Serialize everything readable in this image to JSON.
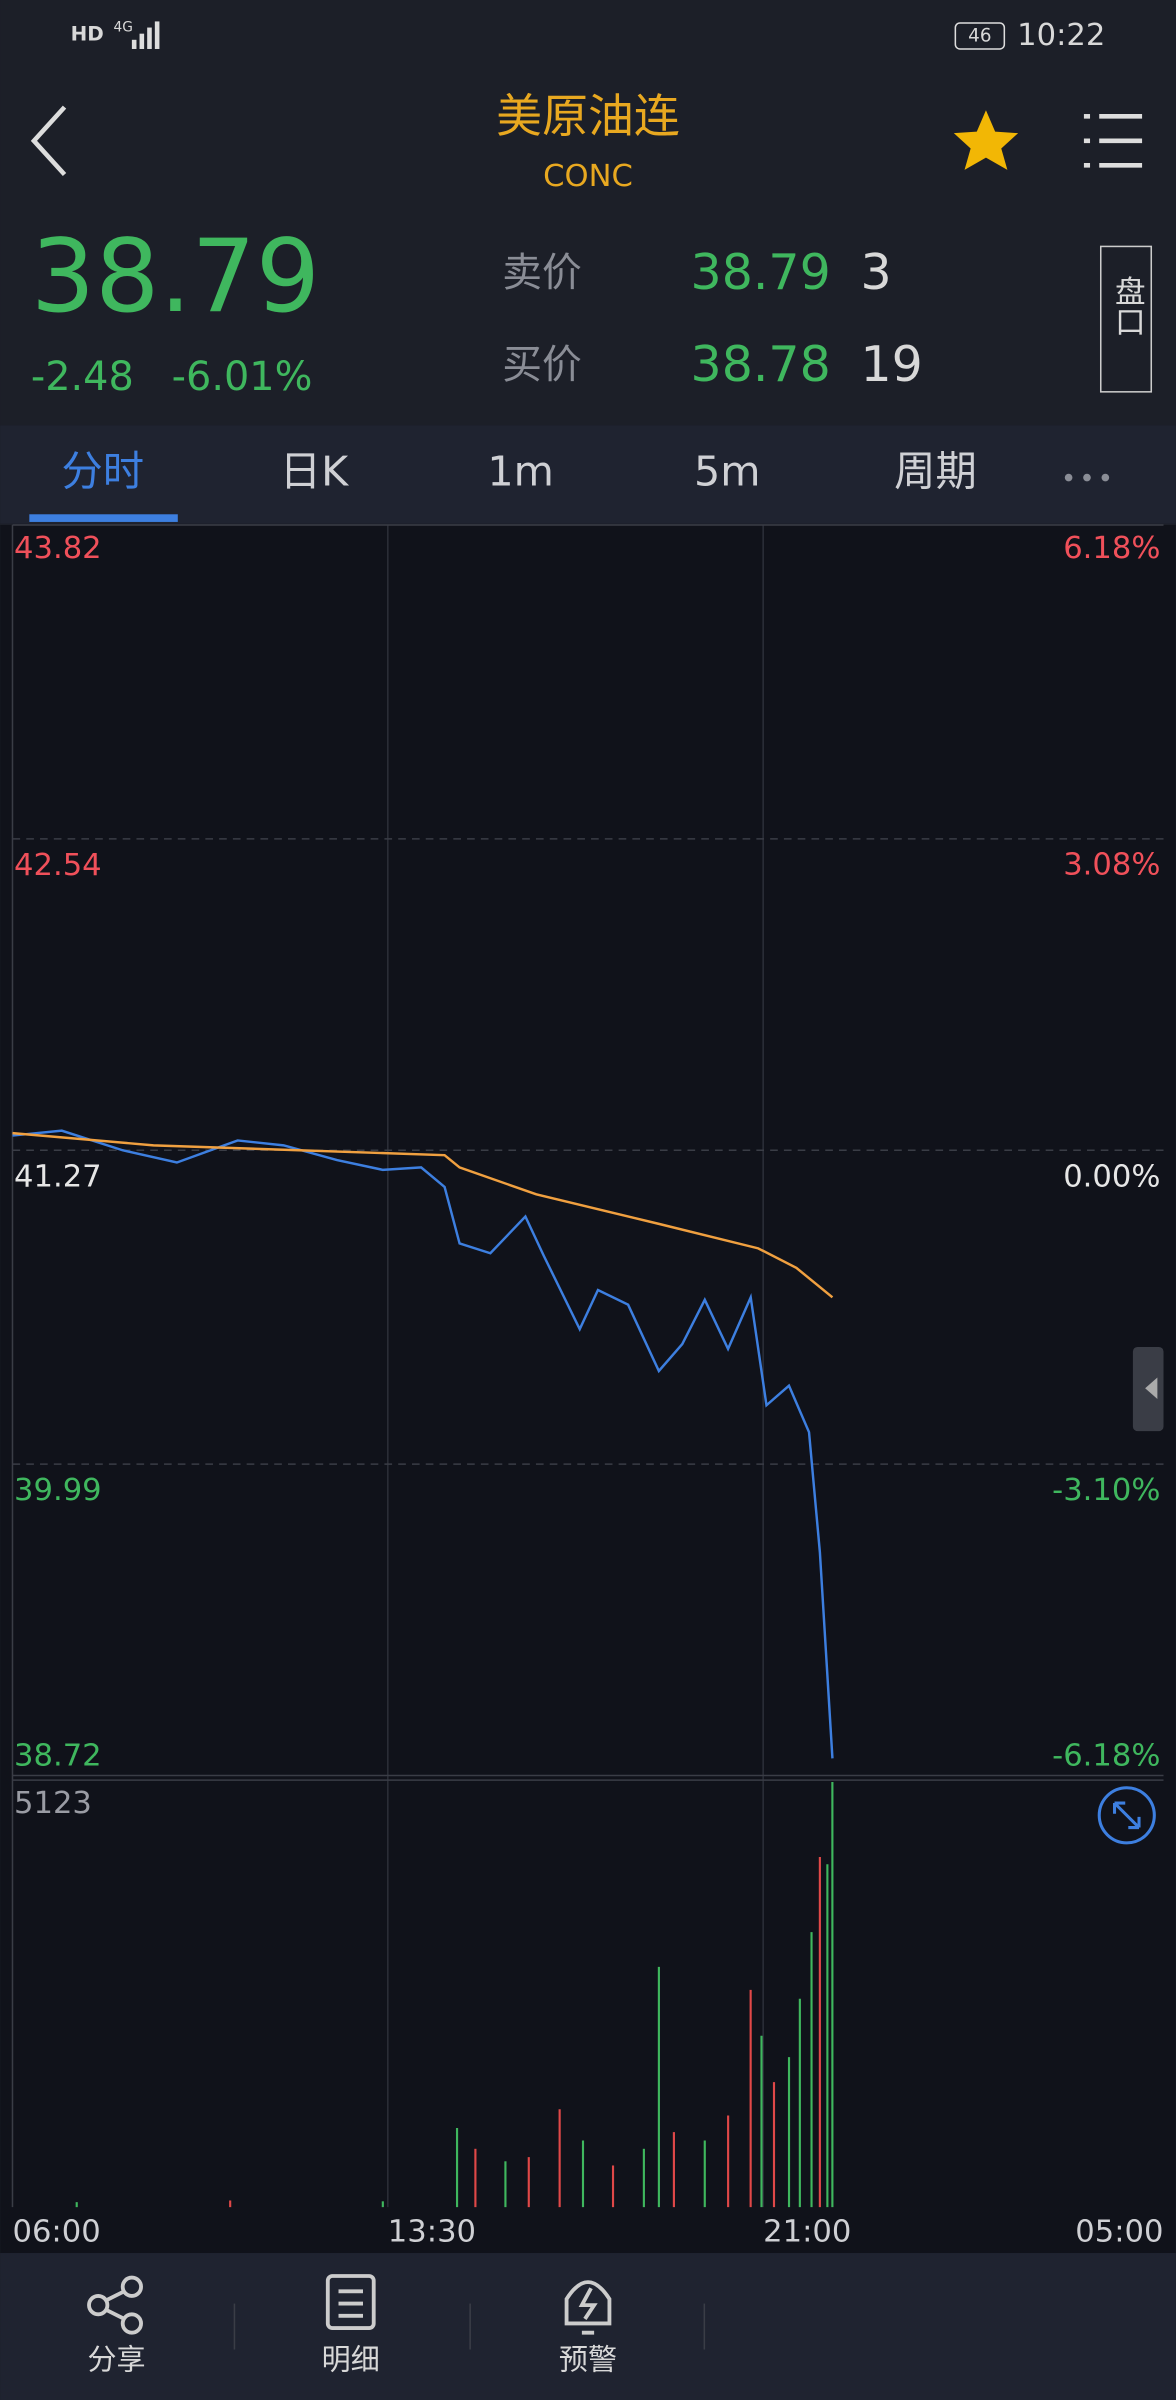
{
  "status_bar": {
    "hd": "HD",
    "network": "4G",
    "battery": "46",
    "time": "10:22"
  },
  "header": {
    "title": "美原油连",
    "subtitle": "CONC"
  },
  "quote": {
    "price": "38.79",
    "change": "-2.48",
    "change_pct": "-6.01%",
    "ask_label": "卖价",
    "ask": "38.79",
    "ask_size": "3",
    "bid_label": "买价",
    "bid": "38.78",
    "bid_size": "19",
    "panel_button": "盘口"
  },
  "tabs": [
    "分时",
    "日K",
    "1m",
    "5m",
    "周期"
  ],
  "chart_data": [
    {
      "type": "line",
      "xlim": [
        0,
        1380
      ],
      "ylim": [
        38.72,
        43.82
      ],
      "yticks": [
        38.72,
        39.99,
        41.27,
        42.54,
        43.82
      ],
      "y2lim": [
        -6.18,
        6.18
      ],
      "y2ticks": [
        {
          "value": -6.18,
          "label": "-6.18%"
        },
        {
          "value": -3.1,
          "label": "-3.10%"
        },
        {
          "value": 0,
          "label": "0.00%"
        },
        {
          "value": 3.08,
          "label": "3.08%"
        },
        {
          "value": 6.18,
          "label": "6.18%"
        }
      ],
      "series": [
        {
          "color": "#3d7fe0",
          "x": [
            0,
            59,
            132,
            197,
            270,
            325,
            389,
            444,
            490,
            518,
            536,
            573,
            615,
            637,
            680,
            702,
            738,
            775,
            803,
            830,
            858,
            885,
            904,
            931,
            955,
            968,
            983
          ],
          "values": [
            41.33,
            41.35,
            41.27,
            41.22,
            41.31,
            41.29,
            41.23,
            41.19,
            41.2,
            41.12,
            40.89,
            40.85,
            41.0,
            40.84,
            40.54,
            40.7,
            40.64,
            40.37,
            40.48,
            40.66,
            40.46,
            40.67,
            40.23,
            40.31,
            40.12,
            39.63,
            38.79
          ]
        },
        {
          "color": "#f0a040",
          "x": [
            0,
            169,
            518,
            536,
            628,
            775,
            894,
            940,
            983
          ],
          "values": [
            41.34,
            41.29,
            41.25,
            41.2,
            41.09,
            40.97,
            40.87,
            40.79,
            40.67
          ]
        }
      ]
    },
    {
      "type": "bar",
      "xlim": [
        0,
        1380
      ],
      "ylim": [
        0,
        5123
      ],
      "yticks": [
        5123
      ],
      "xticks": [
        {
          "value": 0,
          "label": "06:00"
        },
        {
          "value": 450,
          "label": "13:30"
        },
        {
          "value": 900,
          "label": "21:00"
        },
        {
          "value": 1380,
          "label": "05:00"
        }
      ],
      "x": [
        77,
        261,
        444,
        533,
        555,
        591,
        619,
        656,
        684,
        720,
        757,
        775,
        793,
        830,
        858,
        885,
        898,
        913,
        931,
        944,
        958,
        968,
        977,
        983
      ],
      "values": [
        60,
        80,
        70,
        950,
        700,
        550,
        600,
        1175,
        800,
        500,
        700,
        2883,
        900,
        800,
        1100,
        2607,
        2056,
        1500,
        1800,
        2500,
        3300,
        4200,
        4113,
        5100
      ],
      "colors": [
        "#3fb75e",
        "#e04848",
        "#3fb75e",
        "#3fb75e",
        "#e04848",
        "#3fb75e",
        "#e04848",
        "#e04848",
        "#3fb75e",
        "#e04848",
        "#3fb75e",
        "#3fb75e",
        "#e04848",
        "#3fb75e",
        "#e04848",
        "#e04848",
        "#3fb75e",
        "#e04848",
        "#3fb75e",
        "#3fb75e",
        "#3fb75e",
        "#e04848",
        "#3fb75e",
        "#3fb75e"
      ]
    }
  ],
  "bottom_nav": [
    "分享",
    "明细",
    "预警"
  ]
}
